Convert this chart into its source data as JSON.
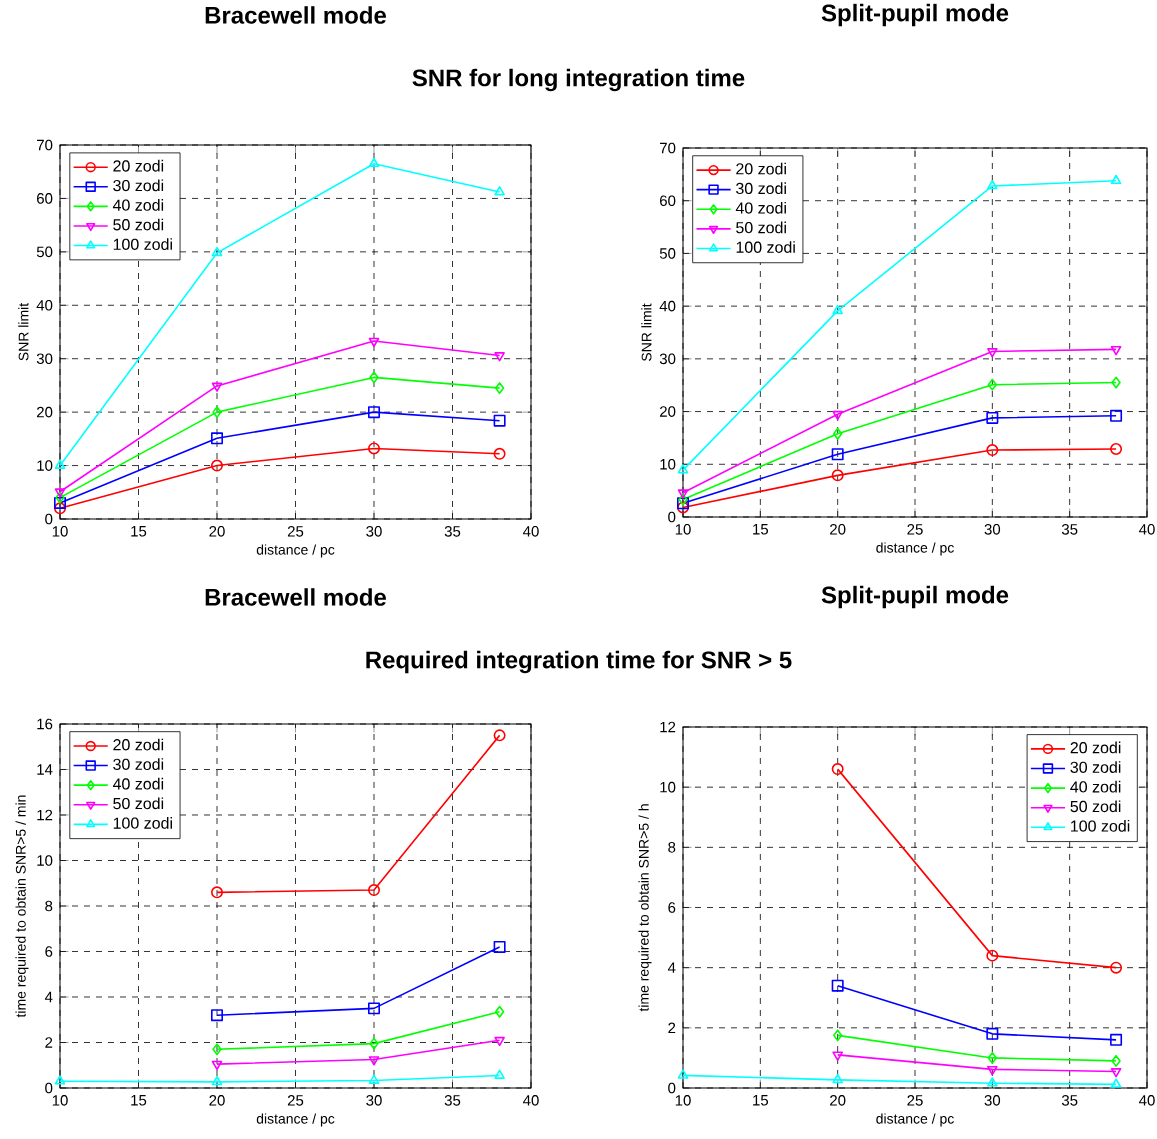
{
  "chart_data": [
    {
      "type": "line",
      "title": "Bracewell mode",
      "annotations": [
        "SNR for long integration time"
      ],
      "xlabel": "distance / pc",
      "ylabel": "SNR limit",
      "x": [
        10,
        20,
        30,
        38
      ],
      "xlim": [
        10,
        40
      ],
      "xticks": [
        10,
        15,
        20,
        25,
        30,
        35,
        40
      ],
      "ylim": [
        0,
        70
      ],
      "yticks": [
        0,
        10,
        20,
        30,
        40,
        50,
        60,
        70
      ],
      "grid": true,
      "legend": "top left",
      "series": [
        {
          "name": "20 zodi",
          "color": "#ff0000",
          "marker": "circle",
          "values": [
            2,
            10,
            13.2,
            12.2
          ]
        },
        {
          "name": "30 zodi",
          "color": "#0000ff",
          "marker": "square",
          "values": [
            3,
            15.1,
            20,
            18.4
          ]
        },
        {
          "name": "40 zodi",
          "color": "#00ff00",
          "marker": "diamond",
          "values": [
            4,
            20,
            26.5,
            24.5
          ]
        },
        {
          "name": "50 zodi",
          "color": "#ff00ff",
          "marker": "triangle-down",
          "values": [
            5.1,
            24.9,
            33.3,
            30.6
          ]
        },
        {
          "name": "100 zodi",
          "color": "#00ffff",
          "marker": "triangle",
          "values": [
            10,
            49.8,
            66.5,
            61.2
          ]
        }
      ]
    },
    {
      "type": "line",
      "title": "Split-pupil mode",
      "xlabel": "distance / pc",
      "ylabel": "SNR limit",
      "x": [
        10,
        20,
        30,
        38
      ],
      "xlim": [
        10,
        40
      ],
      "xticks": [
        10,
        15,
        20,
        25,
        30,
        35,
        40
      ],
      "ylim": [
        0,
        70
      ],
      "yticks": [
        0,
        10,
        20,
        30,
        40,
        50,
        60,
        70
      ],
      "grid": true,
      "legend": "top left",
      "series": [
        {
          "name": "20 zodi",
          "color": "#ff0000",
          "marker": "circle",
          "values": [
            1.8,
            7.9,
            12.7,
            12.9
          ]
        },
        {
          "name": "30 zodi",
          "color": "#0000ff",
          "marker": "square",
          "values": [
            2.6,
            11.9,
            18.8,
            19.2
          ]
        },
        {
          "name": "40 zodi",
          "color": "#00ff00",
          "marker": "diamond",
          "values": [
            3.3,
            15.8,
            25.1,
            25.5
          ]
        },
        {
          "name": "50 zodi",
          "color": "#ff00ff",
          "marker": "triangle-down",
          "values": [
            4.6,
            19.5,
            31.4,
            31.8
          ]
        },
        {
          "name": "100 zodi",
          "color": "#00ffff",
          "marker": "triangle",
          "values": [
            8.9,
            39.1,
            62.8,
            63.8
          ]
        }
      ]
    },
    {
      "type": "line",
      "title": "Bracewell mode",
      "annotations": [
        "Required integration time for SNR > 5"
      ],
      "xlabel": "distance / pc",
      "ylabel": "time required to obtain SNR>5 / min",
      "xlim": [
        10,
        40
      ],
      "xticks": [
        10,
        15,
        20,
        25,
        30,
        35,
        40
      ],
      "ylim": [
        0,
        16
      ],
      "yticks": [
        0,
        2,
        4,
        6,
        8,
        10,
        12,
        14,
        16
      ],
      "grid": true,
      "legend": "top left",
      "series": [
        {
          "name": "20 zodi",
          "color": "#ff0000",
          "marker": "circle",
          "x": [
            20,
            30,
            38
          ],
          "values": [
            8.6,
            8.7,
            15.5
          ]
        },
        {
          "name": "30 zodi",
          "color": "#0000ff",
          "marker": "square",
          "x": [
            20,
            30,
            38
          ],
          "values": [
            3.2,
            3.5,
            6.2
          ]
        },
        {
          "name": "40 zodi",
          "color": "#00ff00",
          "marker": "diamond",
          "x": [
            20,
            30,
            38
          ],
          "values": [
            1.7,
            1.95,
            3.35
          ]
        },
        {
          "name": "50 zodi",
          "color": "#ff00ff",
          "marker": "triangle-down",
          "x": [
            20,
            30,
            38
          ],
          "values": [
            1.05,
            1.25,
            2.1
          ]
        },
        {
          "name": "100 zodi",
          "color": "#00ffff",
          "marker": "triangle",
          "x": [
            10,
            20,
            30,
            38
          ],
          "values": [
            0.3,
            0.27,
            0.33,
            0.55
          ]
        }
      ]
    },
    {
      "type": "line",
      "title": "Split-pupil mode",
      "xlabel": "distance / pc",
      "ylabel": "time required to obtain SNR>5 / h",
      "xlim": [
        10,
        40
      ],
      "xticks": [
        10,
        15,
        20,
        25,
        30,
        35,
        40
      ],
      "ylim": [
        0,
        12
      ],
      "yticks": [
        0,
        2,
        4,
        6,
        8,
        10,
        12
      ],
      "grid": true,
      "legend": "top right",
      "series": [
        {
          "name": "20 zodi",
          "color": "#ff0000",
          "marker": "circle",
          "x": [
            20,
            30,
            38
          ],
          "values": [
            10.6,
            4.4,
            4.0
          ]
        },
        {
          "name": "30 zodi",
          "color": "#0000ff",
          "marker": "square",
          "x": [
            20,
            30,
            38
          ],
          "values": [
            3.4,
            1.8,
            1.6
          ]
        },
        {
          "name": "40 zodi",
          "color": "#00ff00",
          "marker": "diamond",
          "x": [
            20,
            30,
            38
          ],
          "values": [
            1.75,
            1.0,
            0.9
          ]
        },
        {
          "name": "50 zodi",
          "color": "#ff00ff",
          "marker": "triangle-down",
          "x": [
            20,
            30,
            38
          ],
          "values": [
            1.1,
            0.62,
            0.55
          ]
        },
        {
          "name": "100 zodi",
          "color": "#00ffff",
          "marker": "triangle",
          "x": [
            10,
            20,
            30,
            38
          ],
          "values": [
            0.42,
            0.27,
            0.16,
            0.12
          ]
        }
      ]
    }
  ]
}
